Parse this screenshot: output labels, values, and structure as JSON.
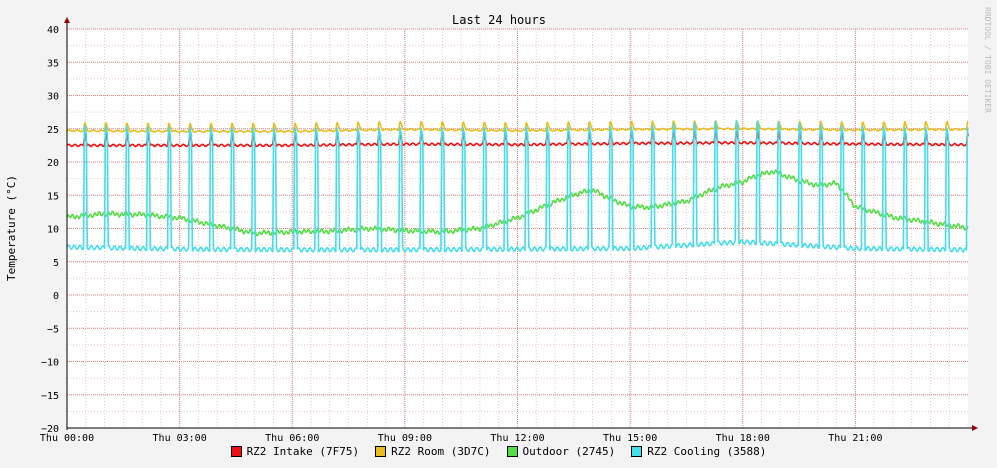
{
  "chart_data": {
    "type": "line",
    "title": "Last 24 hours",
    "ylabel": "Temperature (°C)",
    "xlabel": "",
    "watermark": "RRDTOOL / TOBI OETIKER",
    "ylim": [
      -20,
      40
    ],
    "yticks": [
      40,
      35,
      30,
      25,
      20,
      15,
      10,
      5,
      0,
      -5,
      -10,
      -15,
      -20
    ],
    "xlim": [
      0,
      24
    ],
    "xticks": [
      {
        "value": 0,
        "label": "Thu 00:00"
      },
      {
        "value": 3,
        "label": "Thu 03:00"
      },
      {
        "value": 6,
        "label": "Thu 06:00"
      },
      {
        "value": 9,
        "label": "Thu 09:00"
      },
      {
        "value": 12,
        "label": "Thu 12:00"
      },
      {
        "value": 15,
        "label": "Thu 15:00"
      },
      {
        "value": 18,
        "label": "Thu 18:00"
      },
      {
        "value": 21,
        "label": "Thu 21:00"
      }
    ],
    "series": [
      {
        "name": "RZ2 Intake (7F75)",
        "color": "#ee1111",
        "x": [
          0,
          3,
          6,
          9,
          12,
          15,
          18,
          21,
          24
        ],
        "values": [
          22.5,
          22.5,
          22.5,
          22.7,
          22.6,
          22.8,
          22.9,
          22.7,
          22.6
        ]
      },
      {
        "name": "RZ2 Room (3D7C)",
        "color": "#e8bc1c",
        "x": [
          0,
          3,
          6,
          9,
          12,
          15,
          18,
          21,
          24
        ],
        "values": [
          24.7,
          24.6,
          24.6,
          24.9,
          24.7,
          24.9,
          25.0,
          24.8,
          24.9
        ]
      },
      {
        "name": "Outdoor (2745)",
        "color": "#55dd44",
        "x": [
          0,
          1,
          2,
          3,
          4,
          5,
          6,
          7,
          8,
          9,
          10,
          11,
          12,
          12.5,
          13,
          13.5,
          14,
          14.5,
          15,
          15.5,
          16,
          16.5,
          17,
          17.5,
          18,
          18.3,
          18.8,
          19.5,
          20,
          20.5,
          21,
          22,
          23,
          24
        ],
        "values": [
          11.7,
          12.2,
          12.1,
          11.6,
          10.4,
          9.3,
          9.5,
          9.6,
          10.0,
          9.7,
          9.5,
          10.0,
          11.6,
          12.8,
          14.0,
          15.1,
          15.8,
          14.4,
          13.3,
          13.2,
          13.6,
          14.1,
          15.4,
          16.4,
          17.0,
          17.8,
          18.6,
          17.2,
          16.5,
          16.8,
          13.3,
          11.7,
          10.9,
          10.1
        ]
      },
      {
        "name": "RZ2 Cooling (3588)",
        "color": "#44ddee",
        "x": [
          0,
          3,
          6,
          9,
          12,
          15,
          18,
          21,
          24
        ],
        "values": [
          7.2,
          6.9,
          6.8,
          6.8,
          6.9,
          7.0,
          8.0,
          7.0,
          6.8
        ]
      }
    ]
  }
}
